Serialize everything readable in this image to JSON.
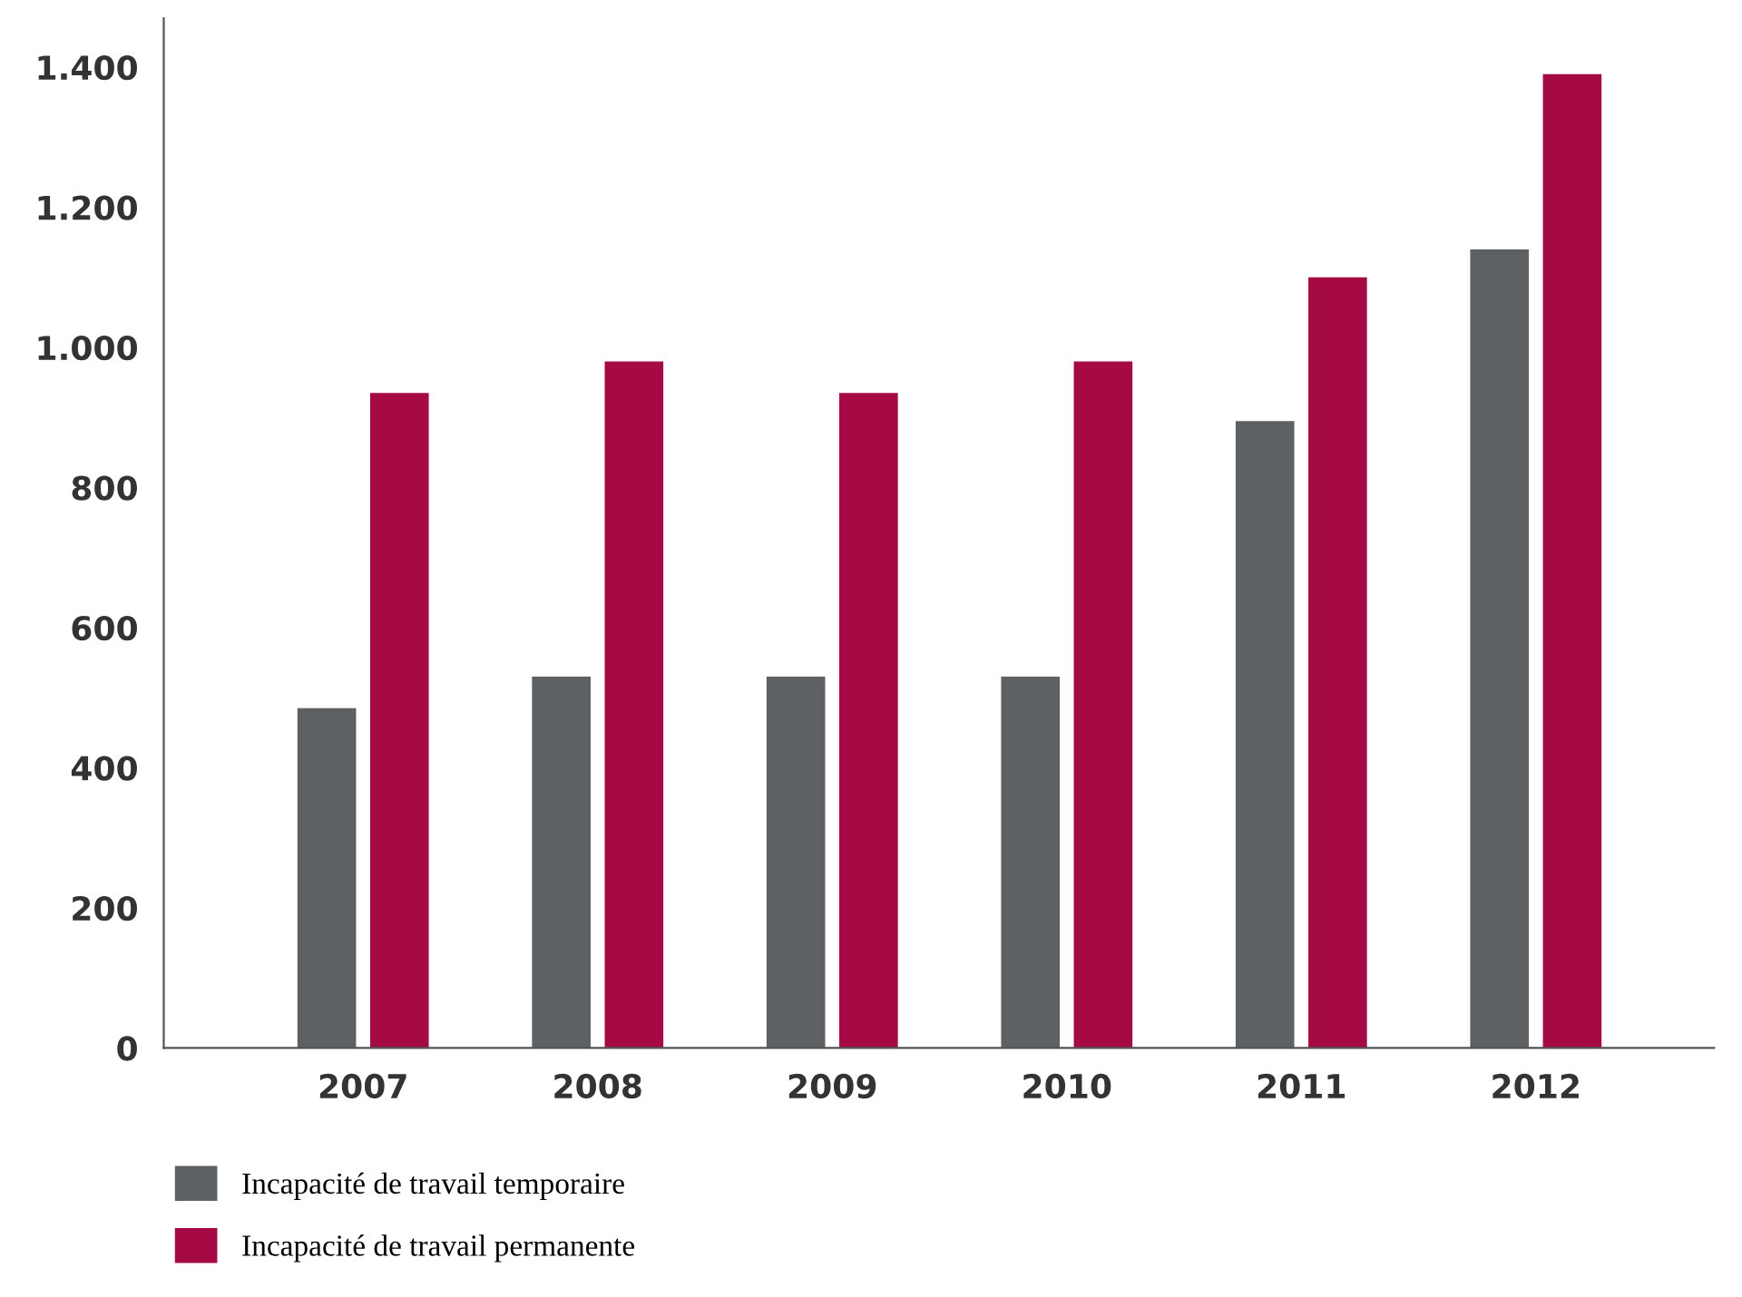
{
  "chart_data": {
    "type": "bar",
    "categories": [
      "2007",
      "2008",
      "2009",
      "2010",
      "2011",
      "2012"
    ],
    "series": [
      {
        "name": "Incapacité de travail temporaire",
        "color": "#5d6164",
        "values": [
          485,
          530,
          530,
          530,
          895,
          1140
        ]
      },
      {
        "name": "Incapacité de travail permanente",
        "color": "#a50a45",
        "values": [
          935,
          980,
          935,
          980,
          1100,
          1390
        ]
      }
    ],
    "ylim": [
      0,
      1470
    ],
    "yticks": [
      0,
      200,
      400,
      600,
      800,
      {
        "value": 1000,
        "label": "1.000"
      },
      {
        "value": 1200,
        "label": "1.200"
      },
      {
        "value": 1400,
        "label": "1.400"
      }
    ],
    "grid": false,
    "legend": "bottom left"
  }
}
